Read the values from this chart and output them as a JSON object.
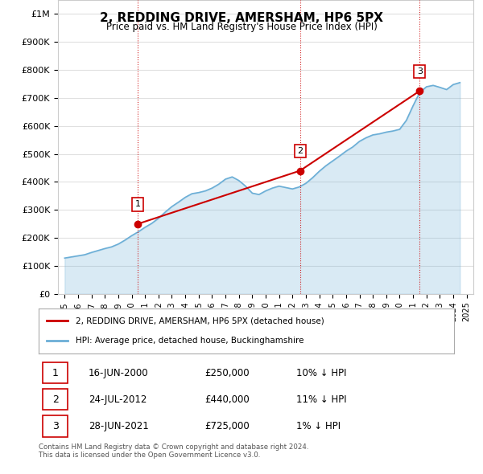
{
  "title": "2, REDDING DRIVE, AMERSHAM, HP6 5PX",
  "subtitle": "Price paid vs. HM Land Registry's House Price Index (HPI)",
  "hpi_years": [
    1995,
    1995.5,
    1996,
    1996.5,
    1997,
    1997.5,
    1998,
    1998.5,
    1999,
    1999.5,
    2000,
    2000.5,
    2001,
    2001.5,
    2002,
    2002.5,
    2003,
    2003.5,
    2004,
    2004.5,
    2005,
    2005.5,
    2006,
    2006.5,
    2007,
    2007.5,
    2008,
    2008.5,
    2009,
    2009.5,
    2010,
    2010.5,
    2011,
    2011.5,
    2012,
    2012.5,
    2013,
    2013.5,
    2014,
    2014.5,
    2015,
    2015.5,
    2016,
    2016.5,
    2017,
    2017.5,
    2018,
    2018.5,
    2019,
    2019.5,
    2020,
    2020.5,
    2021,
    2021.5,
    2022,
    2022.5,
    2023,
    2023.5,
    2024,
    2024.5
  ],
  "hpi_values": [
    128000,
    132000,
    136000,
    140000,
    148000,
    155000,
    162000,
    168000,
    178000,
    192000,
    208000,
    222000,
    238000,
    252000,
    270000,
    292000,
    312000,
    328000,
    345000,
    358000,
    362000,
    368000,
    378000,
    392000,
    410000,
    418000,
    405000,
    385000,
    360000,
    355000,
    368000,
    378000,
    385000,
    380000,
    375000,
    382000,
    395000,
    415000,
    438000,
    458000,
    475000,
    492000,
    510000,
    525000,
    545000,
    558000,
    568000,
    572000,
    578000,
    582000,
    588000,
    620000,
    672000,
    720000,
    740000,
    745000,
    738000,
    730000,
    748000,
    755000
  ],
  "sale_dates": [
    2000.46,
    2012.56,
    2021.49
  ],
  "sale_values": [
    250000,
    440000,
    725000
  ],
  "sale_labels": [
    "1",
    "2",
    "3"
  ],
  "vline_dates": [
    2000.46,
    2012.56,
    2021.49
  ],
  "ylabel_ticks": [
    "£0",
    "£100K",
    "£200K",
    "£300K",
    "£400K",
    "£500K",
    "£600K",
    "£700K",
    "£800K",
    "£900K",
    "£1M"
  ],
  "ytick_values": [
    0,
    100000,
    200000,
    300000,
    400000,
    500000,
    600000,
    700000,
    800000,
    900000,
    1000000
  ],
  "xlim": [
    1994.5,
    2025.5
  ],
  "ylim": [
    0,
    1050000
  ],
  "hpi_color": "#6baed6",
  "sale_color": "#cc0000",
  "vline_color": "#cc0000",
  "grid_color": "#e0e0e0",
  "bg_color": "#ffffff",
  "legend_label_sale": "2, REDDING DRIVE, AMERSHAM, HP6 5PX (detached house)",
  "legend_label_hpi": "HPI: Average price, detached house, Buckinghamshire",
  "table_rows": [
    {
      "num": "1",
      "date": "16-JUN-2000",
      "price": "£250,000",
      "hpi": "10% ↓ HPI"
    },
    {
      "num": "2",
      "date": "24-JUL-2012",
      "price": "£440,000",
      "hpi": "11% ↓ HPI"
    },
    {
      "num": "3",
      "date": "28-JUN-2021",
      "price": "£725,000",
      "hpi": "1% ↓ HPI"
    }
  ],
  "footnote": "Contains HM Land Registry data © Crown copyright and database right 2024.\nThis data is licensed under the Open Government Licence v3.0."
}
